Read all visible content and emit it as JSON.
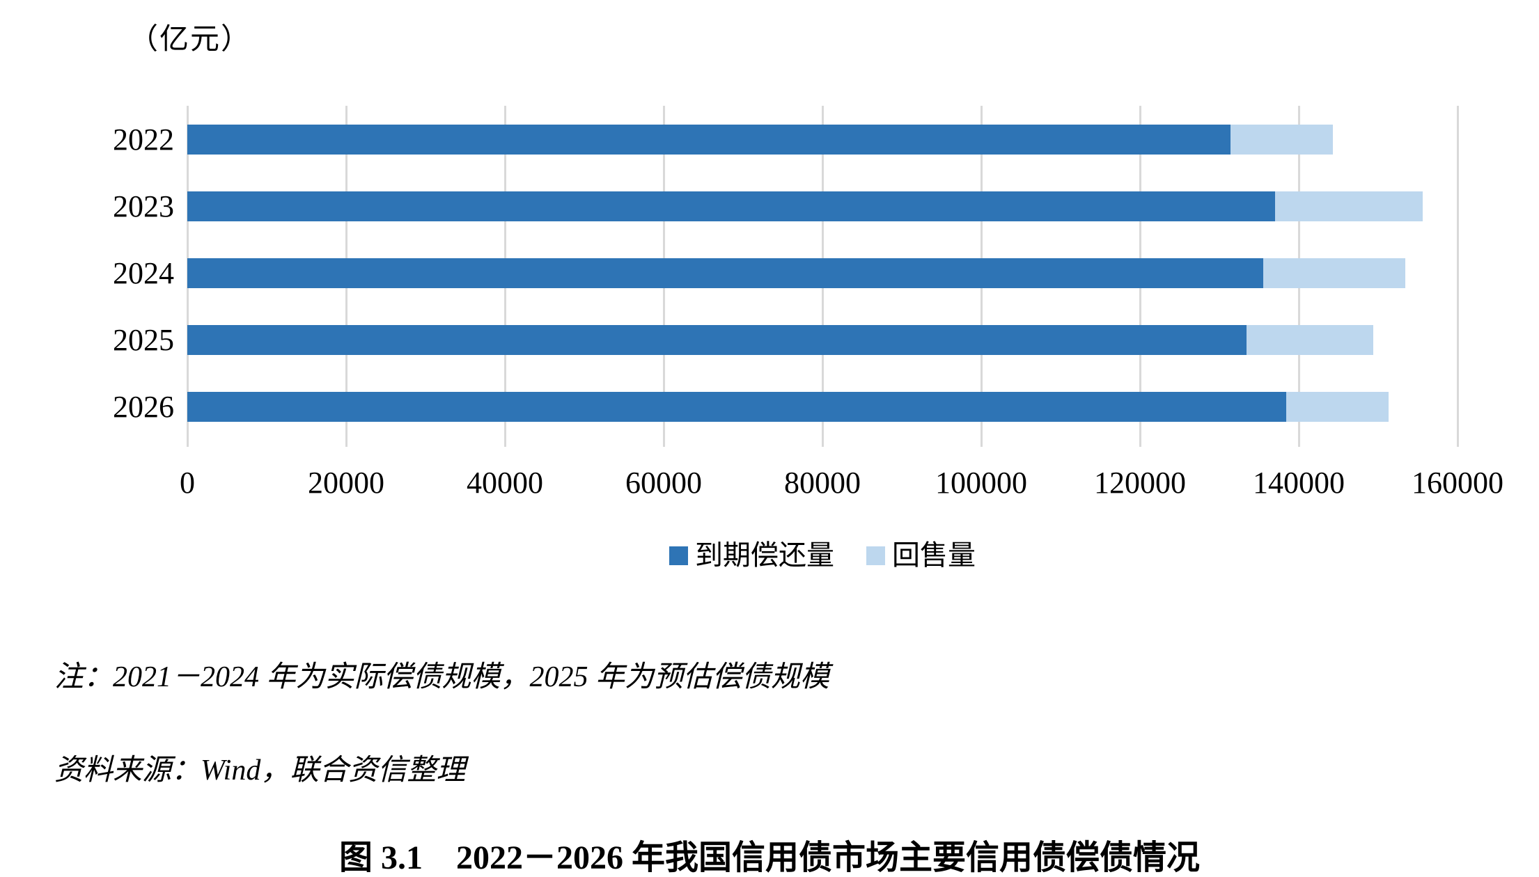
{
  "unit_label": "（亿元）",
  "chart_data": {
    "type": "bar",
    "orientation": "horizontal",
    "stacked": true,
    "title": "",
    "xlabel": "",
    "ylabel": "",
    "unit": "亿元",
    "categories": [
      "2022",
      "2023",
      "2024",
      "2025",
      "2026"
    ],
    "series": [
      {
        "name": "到期偿还量",
        "color": "#2E74B5",
        "values": [
          131400,
          137000,
          135500,
          133400,
          138400
        ]
      },
      {
        "name": "回售量",
        "color": "#BDD7EE",
        "values": [
          12900,
          18600,
          17900,
          16000,
          12900
        ]
      }
    ],
    "totals": [
      144300,
      155600,
      153400,
      149400,
      151300
    ],
    "xlim": [
      0,
      160000
    ],
    "x_ticks": [
      0,
      20000,
      40000,
      60000,
      80000,
      100000,
      120000,
      140000,
      160000
    ],
    "grid": "vertical",
    "gridline_color": "#D9D9D9",
    "legend_position": "bottom"
  },
  "note": "注：2021－2024 年为实际偿债规模，2025 年为预估偿债规模",
  "source": "资料来源：Wind，联合资信整理",
  "caption": "图 3.1　2022－2026 年我国信用债市场主要信用债偿债情况"
}
